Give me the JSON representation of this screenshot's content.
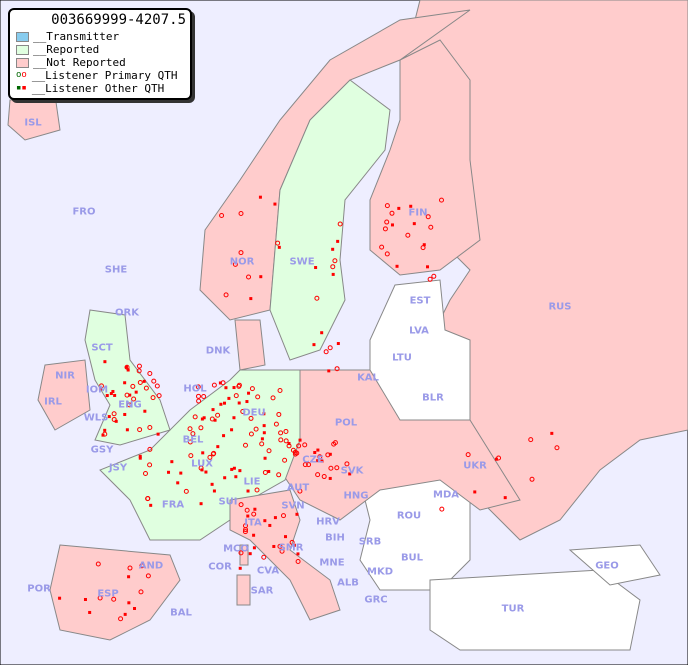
{
  "title": "003669999-4207.5",
  "legend": {
    "transmitter": "__Transmitter",
    "reported": "__Reported",
    "not_reported": "__Not Reported",
    "primary": "__Listener Primary QTH",
    "other": "__Listener Other QTH"
  },
  "colors": {
    "sea": "#eeeeff",
    "transmitter": "#88ccee",
    "reported": "#e0ffe0",
    "not_reported": "#ffcccc",
    "unreported_land": "#ffffff",
    "listener": "#ff0000",
    "listener_reported": "#006600",
    "label": "#9a9ae8"
  },
  "countries": [
    "ISL",
    "FRO",
    "SHE",
    "ORK",
    "NOR",
    "SWE",
    "FIN",
    "RUS",
    "EST",
    "LVA",
    "LTU",
    "KAL",
    "BLR",
    "DNK",
    "HOL",
    "DEU",
    "POL",
    "IRL",
    "IOM",
    "WLS",
    "ENG",
    "GSY",
    "JSY",
    "BEL",
    "LUX",
    "CZE",
    "SVK",
    "UKR",
    "MDA",
    "FRA",
    "SUI",
    "LIE",
    "AUT",
    "HNG",
    "ROU",
    "SVN",
    "HRV",
    "ITA",
    "BIH",
    "SRB",
    "MCO",
    "COR",
    "CVA",
    "SMR",
    "MNE",
    "ALB",
    "MKD",
    "BUL",
    "GEO",
    "POR",
    "ESP",
    "AND",
    "BAL",
    "SAR",
    "GRC",
    "TUR",
    "NIR",
    "SCT"
  ]
}
